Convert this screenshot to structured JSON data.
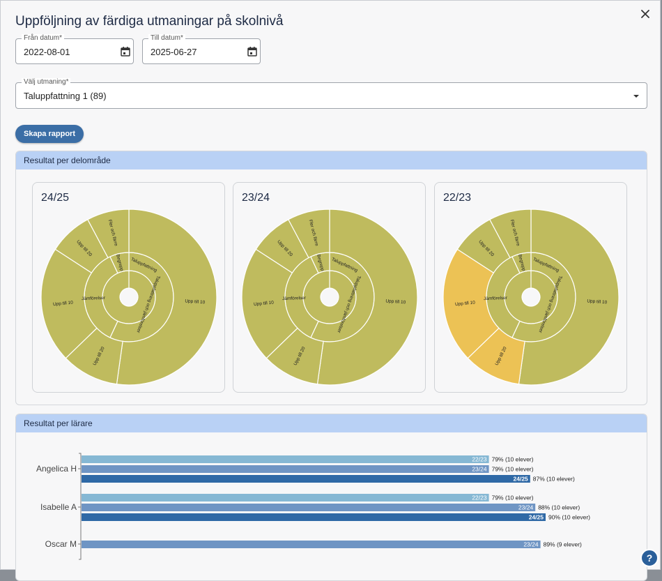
{
  "dialog": {
    "title": "Uppföljning av färdiga utmaningar på skolnivå"
  },
  "form": {
    "from": {
      "label": "Från datum*",
      "value": "2022-08-01"
    },
    "to": {
      "label": "Till datum*",
      "value": "2025-06-27"
    },
    "challenge": {
      "label": "Välj utmaning*",
      "value": "Taluppfattning 1 (89)"
    },
    "create_label": "Skapa rapport"
  },
  "panel_area": {
    "title": "Resultat per delområde",
    "charts": [
      {
        "label": "24/25"
      },
      {
        "label": "23/24"
      },
      {
        "label": "22/23"
      }
    ]
  },
  "panel_teacher": {
    "title": "Resultat per lärare"
  },
  "colors": {
    "olive": "#bfbb5e",
    "yellow": "#ecc255",
    "bar_2223": "#86b8d4",
    "bar_2324": "#6f95c4",
    "bar_2425": "#2f69a6"
  },
  "chart_data": [
    {
      "type": "sunburst",
      "title": "24/25",
      "rings": [
        {
          "name": "Taluppfattning",
          "children": [
            {
              "name": "Taluppfattning och jämförelser",
              "children": [
                {
                  "name": "Upp till 10"
                }
              ]
            },
            {
              "name": "Jämförelser",
              "children": [
                {
                  "name": "Upp till 10"
                },
                {
                  "name": "Upp till 20"
                }
              ]
            },
            {
              "name": "Begrepp",
              "children": [
                {
                  "name": "Upp till 20"
                },
                {
                  "name": "Fler och färre"
                }
              ]
            }
          ]
        }
      ]
    },
    {
      "type": "sunburst",
      "title": "23/24",
      "rings": [
        {
          "name": "Taluppfattning",
          "children": [
            {
              "name": "Taluppfattning och jämförelser",
              "children": [
                {
                  "name": "Upp till 10"
                }
              ]
            },
            {
              "name": "Jämförelser",
              "children": [
                {
                  "name": "Upp till 10"
                },
                {
                  "name": "Upp till 20"
                }
              ]
            },
            {
              "name": "Begrepp",
              "children": [
                {
                  "name": "Upp till 20"
                },
                {
                  "name": "Fler och färre"
                }
              ]
            }
          ]
        }
      ]
    },
    {
      "type": "sunburst",
      "title": "22/23",
      "rings": [
        {
          "name": "Taluppfattning",
          "children": [
            {
              "name": "Taluppfattning och jämförelser",
              "children": [
                {
                  "name": "Upp till 10"
                }
              ]
            },
            {
              "name": "Jämförelser",
              "children": [
                {
                  "name": "Upp till 10"
                },
                {
                  "name": "Upp till 20"
                }
              ]
            },
            {
              "name": "Begrepp",
              "children": [
                {
                  "name": "Upp till 20"
                },
                {
                  "name": "Fler och färre"
                }
              ]
            }
          ]
        }
      ]
    },
    {
      "type": "bar",
      "orientation": "horizontal",
      "categories": [
        "Angelica H",
        "Isabelle A",
        "Oscar M"
      ],
      "series": [
        {
          "name": "22/23",
          "values": [
            79,
            79,
            null
          ],
          "labels": [
            "79% (10 elever)",
            "79% (10 elever)",
            ""
          ]
        },
        {
          "name": "23/24",
          "values": [
            79,
            88,
            89
          ],
          "labels": [
            "79% (10 elever)",
            "88% (10 elever)",
            "89% (9 elever)"
          ]
        },
        {
          "name": "24/25",
          "values": [
            87,
            90,
            null
          ],
          "labels": [
            "87% (10 elever)",
            "90% (10 elever)",
            ""
          ]
        }
      ],
      "xlim": [
        0,
        100
      ]
    }
  ]
}
